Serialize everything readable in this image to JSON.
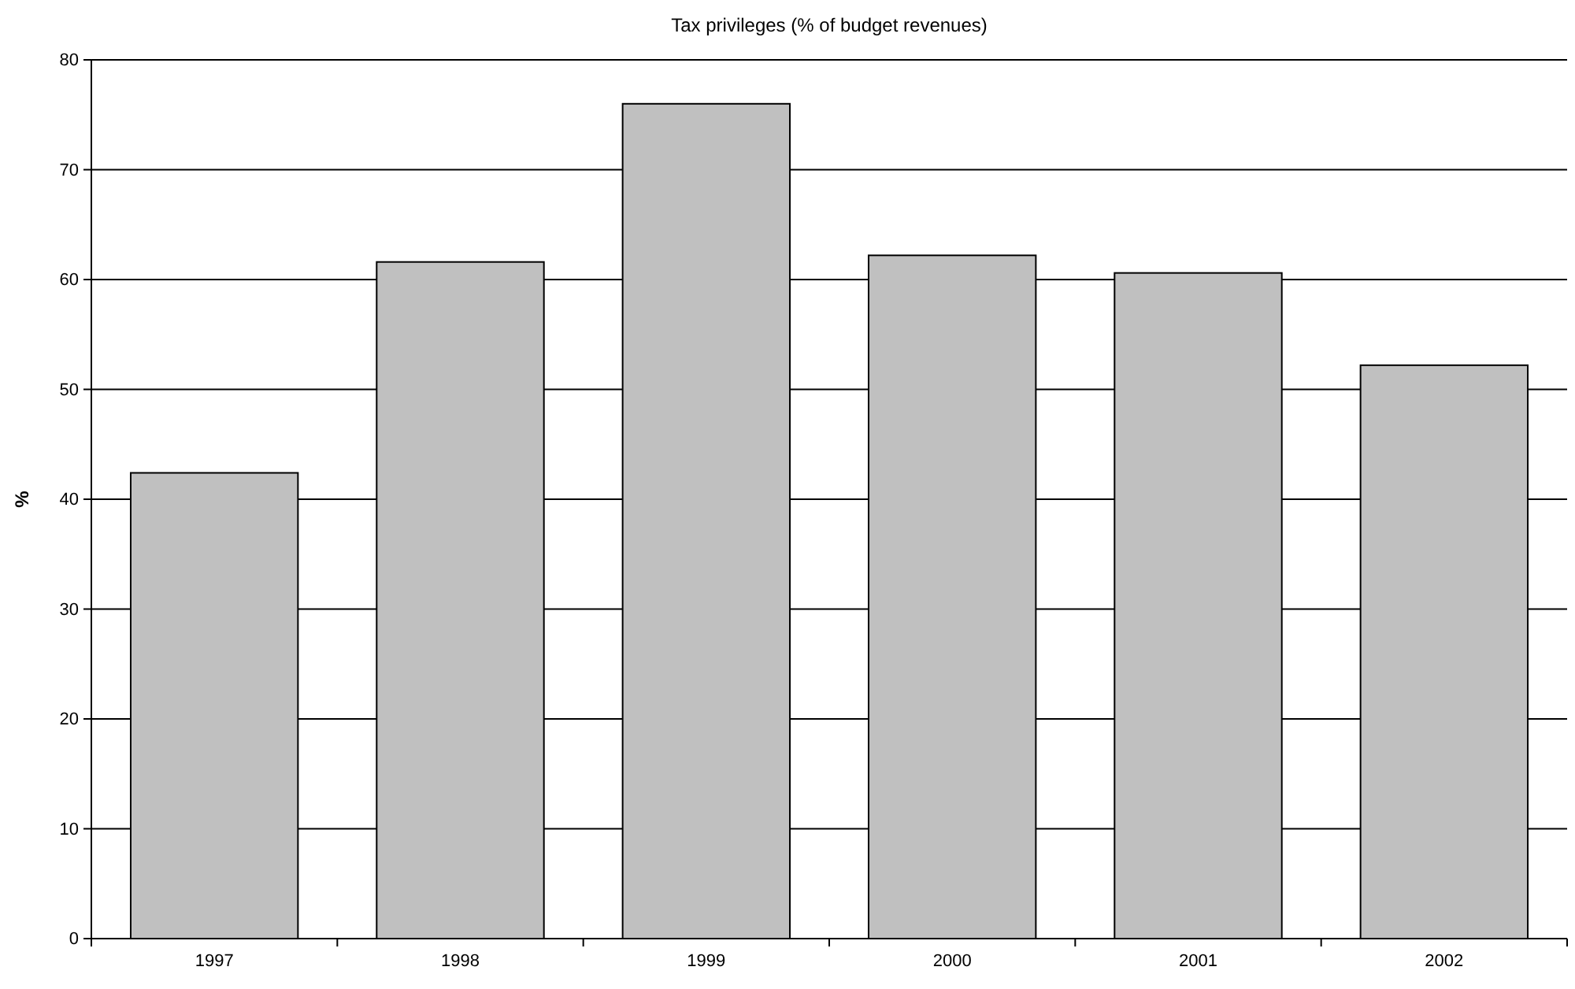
{
  "chart_data": {
    "type": "bar",
    "title": "Tax privileges (% of budget revenues)",
    "ylabel": "%",
    "categories": [
      "1997",
      "1998",
      "1999",
      "2000",
      "2001",
      "2002"
    ],
    "values": [
      42.4,
      61.6,
      76.0,
      62.2,
      60.6,
      52.2
    ],
    "color": "#c0c0c0",
    "ylim": [
      0,
      80
    ],
    "yticks": [
      0,
      10,
      20,
      30,
      40,
      50,
      60,
      70,
      80
    ],
    "grid": "y"
  }
}
